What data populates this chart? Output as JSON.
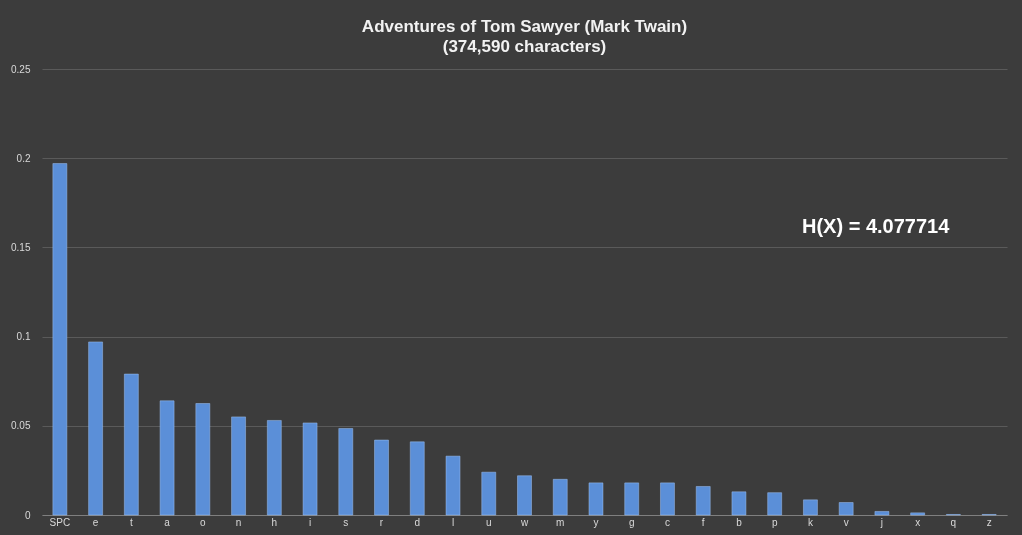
{
  "chart_data": {
    "type": "bar",
    "title": "Adventures of Tom Sawyer (Mark Twain)",
    "subtitle": "(374,590 characters)",
    "categories": [
      "SPC",
      "e",
      "t",
      "a",
      "o",
      "n",
      "h",
      "i",
      "s",
      "r",
      "d",
      "l",
      "u",
      "w",
      "m",
      "y",
      "g",
      "c",
      "f",
      "b",
      "p",
      "k",
      "v",
      "j",
      "x",
      "q",
      "z"
    ],
    "values": [
      0.197,
      0.097,
      0.079,
      0.064,
      0.0625,
      0.055,
      0.053,
      0.0516,
      0.0485,
      0.042,
      0.041,
      0.033,
      0.024,
      0.022,
      0.02,
      0.018,
      0.018,
      0.018,
      0.016,
      0.013,
      0.0125,
      0.0085,
      0.007,
      0.002,
      0.0012,
      0.0003,
      0.0003
    ],
    "color": "#5b8fd8",
    "ylim": [
      0,
      0.25
    ],
    "yticks": [
      0,
      0.05,
      0.1,
      0.15,
      0.2,
      0.25
    ],
    "grid": "y",
    "annotations": [
      "H(X) = 4.077714"
    ]
  }
}
